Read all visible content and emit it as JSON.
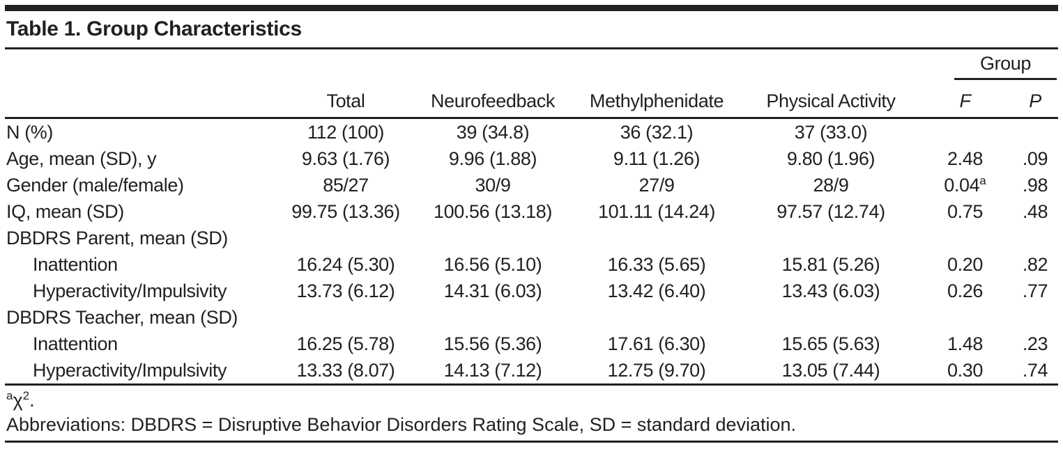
{
  "title": "Table 1. Group Characteristics",
  "colors": {
    "ink": "#231f20",
    "background": "#ffffff"
  },
  "table": {
    "group_spanner": "Group",
    "columns": [
      "",
      "Total",
      "Neurofeedback",
      "Methylphenidate",
      "Physical Activity",
      "F",
      "P"
    ],
    "rows": [
      {
        "label": "N (%)",
        "indent": false,
        "values": [
          "112 (100)",
          "39 (34.8)",
          "36 (32.1)",
          "37 (33.0)",
          "",
          ""
        ]
      },
      {
        "label": "Age, mean (SD), y",
        "indent": false,
        "values": [
          "9.63 (1.76)",
          "9.96 (1.88)",
          "9.11 (1.26)",
          "9.80 (1.96)",
          "2.48",
          ".09"
        ]
      },
      {
        "label": "Gender (male/female)",
        "indent": false,
        "values": [
          "85/27",
          "30/9",
          "27/9",
          "28/9",
          {
            "text": "0.04",
            "sup": "a"
          },
          ".98"
        ]
      },
      {
        "label": "IQ, mean (SD)",
        "indent": false,
        "values": [
          "99.75 (13.36)",
          "100.56 (13.18)",
          "101.11 (14.24)",
          "97.57 (12.74)",
          "0.75",
          ".48"
        ]
      },
      {
        "label": "DBDRS Parent, mean (SD)",
        "indent": false,
        "values": [
          "",
          "",
          "",
          "",
          "",
          ""
        ]
      },
      {
        "label": "Inattention",
        "indent": true,
        "values": [
          "16.24 (5.30)",
          "16.56 (5.10)",
          "16.33 (5.65)",
          "15.81 (5.26)",
          "0.20",
          ".82"
        ]
      },
      {
        "label": "Hyperactivity/Impulsivity",
        "indent": true,
        "values": [
          "13.73 (6.12)",
          "14.31 (6.03)",
          "13.42 (6.40)",
          "13.43 (6.03)",
          "0.26",
          ".77"
        ]
      },
      {
        "label": "DBDRS Teacher, mean (SD)",
        "indent": false,
        "values": [
          "",
          "",
          "",
          "",
          "",
          ""
        ]
      },
      {
        "label": "Inattention",
        "indent": true,
        "values": [
          "16.25 (5.78)",
          "15.56 (5.36)",
          "17.61 (6.30)",
          "15.65 (5.63)",
          "1.48",
          ".23"
        ]
      },
      {
        "label": "Hyperactivity/Impulsivity",
        "indent": true,
        "values": [
          "13.33 (8.07)",
          "14.13 (7.12)",
          "12.75 (9.70)",
          "13.05 (7.44)",
          "0.30",
          ".74"
        ]
      }
    ]
  },
  "footnotes": {
    "chi": {
      "marker": "a",
      "symbol": "χ",
      "exponent": "2",
      "punct": "."
    },
    "abbreviations": "Abbreviations: DBDRS = Disruptive Behavior Disorders Rating Scale, SD = standard deviation."
  }
}
